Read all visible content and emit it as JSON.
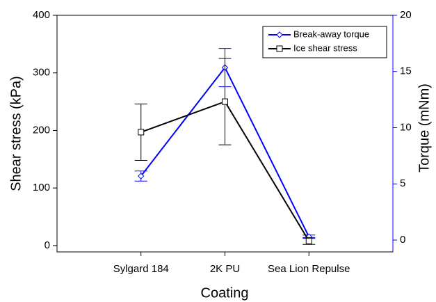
{
  "chart_data": {
    "type": "line",
    "x_label": "Coating",
    "y_label": "Shear stress (kPa)",
    "y2_label": "Torque (mNm)",
    "categories": [
      "Sylgard 184",
      "2K PU",
      "Sea Lion Repulse"
    ],
    "ylim": [
      -11,
      400
    ],
    "yticks": [
      0,
      100,
      200,
      300,
      400
    ],
    "y2lim": [
      -1.05,
      20
    ],
    "y2ticks": [
      0,
      5,
      10,
      15,
      20
    ],
    "y2color": "#0000ff",
    "legend": "upper right",
    "series": [
      {
        "name": "Break-away torque",
        "color": "#0000ff",
        "marker": "diamond",
        "axis": "y2",
        "values": [
          5.7,
          15.35,
          0.3
        ],
        "errors": [
          0.45,
          1.7,
          0.15
        ]
      },
      {
        "name": "Ice shear stress",
        "color": "#000000",
        "marker": "square",
        "values": [
          197,
          250,
          8
        ],
        "errors": [
          49,
          75,
          6
        ]
      }
    ]
  }
}
